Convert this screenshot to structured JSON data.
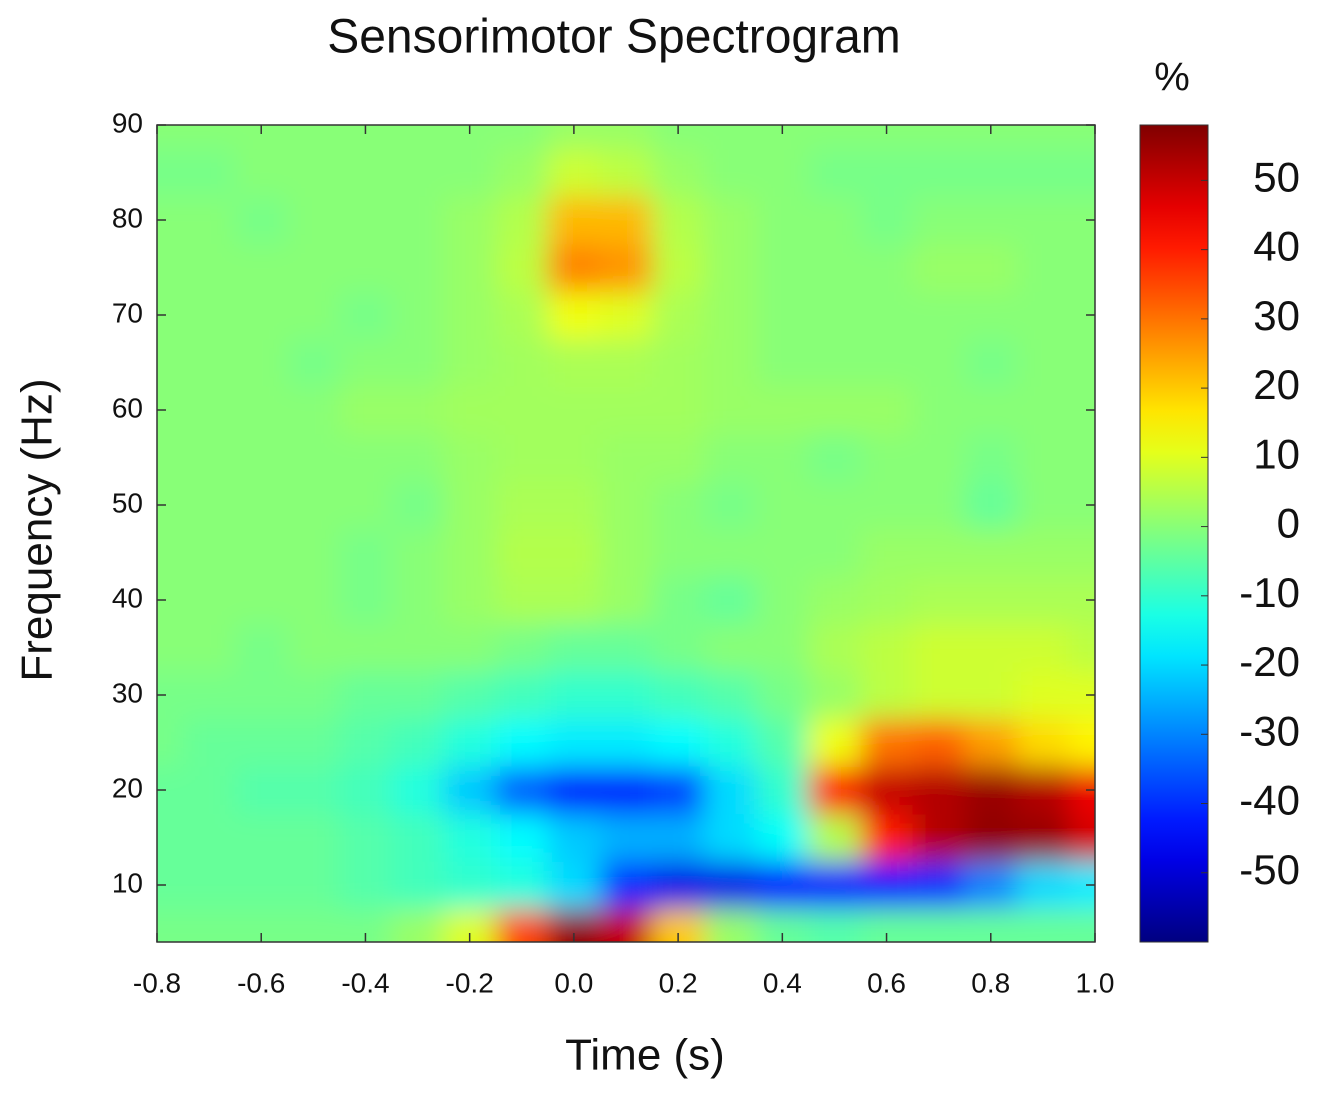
{
  "chart_data": {
    "type": "heatmap",
    "title": "Sensorimotor Spectrogram",
    "x_label": "Time (s)",
    "y_label": "Frequency (Hz)",
    "colorbar_label": "%",
    "colormap": "jet",
    "x": [
      -0.8,
      -0.7,
      -0.6,
      -0.5,
      -0.4,
      -0.3,
      -0.2,
      -0.1,
      0.0,
      0.1,
      0.2,
      0.3,
      0.4,
      0.5,
      0.6,
      0.7,
      0.8,
      0.9,
      1.0
    ],
    "y": [
      5,
      10,
      15,
      20,
      25,
      30,
      35,
      40,
      45,
      50,
      55,
      60,
      65,
      70,
      75,
      80,
      85,
      90
    ],
    "z": [
      [
        -2,
        -2,
        -2,
        -2,
        -2,
        2,
        10,
        35,
        56,
        50,
        20,
        2,
        -4,
        -6,
        -4,
        -4,
        -4,
        -4,
        -4
      ],
      [
        -4,
        -4,
        -4,
        -4,
        -6,
        -8,
        -10,
        -12,
        -20,
        -40,
        -48,
        -48,
        -45,
        -44,
        -42,
        -40,
        -30,
        -20,
        -18
      ],
      [
        -4,
        -4,
        -4,
        -4,
        -6,
        -8,
        -12,
        -16,
        -22,
        -25,
        -25,
        -20,
        -15,
        5,
        40,
        52,
        56,
        55,
        48
      ],
      [
        -4,
        -4,
        -6,
        -6,
        -8,
        -12,
        -22,
        -34,
        -42,
        -42,
        -38,
        -20,
        -10,
        40,
        50,
        52,
        55,
        52,
        45
      ],
      [
        -2,
        -4,
        -4,
        -4,
        -6,
        -8,
        -12,
        -16,
        -18,
        -18,
        -16,
        -12,
        -6,
        12,
        30,
        32,
        25,
        18,
        15
      ],
      [
        -2,
        -2,
        -2,
        -2,
        -4,
        -4,
        -6,
        -8,
        -10,
        -10,
        -8,
        -6,
        -2,
        2,
        6,
        8,
        8,
        10,
        10
      ],
      [
        0,
        0,
        -2,
        0,
        0,
        0,
        0,
        -2,
        -4,
        -4,
        -2,
        0,
        0,
        4,
        6,
        8,
        8,
        8,
        6
      ],
      [
        0,
        0,
        0,
        0,
        -2,
        0,
        2,
        4,
        4,
        2,
        -2,
        -4,
        0,
        2,
        3,
        4,
        4,
        4,
        4
      ],
      [
        0,
        0,
        0,
        0,
        -2,
        0,
        2,
        5,
        5,
        2,
        0,
        0,
        0,
        0,
        2,
        2,
        2,
        2,
        2
      ],
      [
        0,
        0,
        0,
        0,
        0,
        -2,
        2,
        4,
        4,
        2,
        0,
        -2,
        0,
        0,
        0,
        0,
        -4,
        0,
        0
      ],
      [
        0,
        0,
        0,
        0,
        0,
        0,
        2,
        3,
        3,
        2,
        2,
        0,
        0,
        -2,
        0,
        0,
        -2,
        0,
        0
      ],
      [
        0,
        0,
        0,
        0,
        2,
        2,
        3,
        3,
        3,
        3,
        3,
        2,
        2,
        2,
        2,
        0,
        0,
        0,
        0
      ],
      [
        0,
        0,
        0,
        -2,
        0,
        0,
        2,
        3,
        4,
        4,
        3,
        2,
        0,
        0,
        0,
        0,
        -2,
        0,
        0
      ],
      [
        0,
        0,
        0,
        0,
        -2,
        0,
        2,
        4,
        12,
        10,
        4,
        2,
        0,
        0,
        0,
        0,
        0,
        0,
        0
      ],
      [
        0,
        0,
        0,
        0,
        0,
        0,
        2,
        6,
        28,
        26,
        6,
        2,
        0,
        0,
        0,
        2,
        2,
        0,
        0
      ],
      [
        0,
        0,
        -2,
        0,
        0,
        0,
        2,
        5,
        22,
        22,
        5,
        2,
        0,
        0,
        -2,
        0,
        0,
        0,
        0
      ],
      [
        -2,
        -2,
        0,
        0,
        0,
        0,
        0,
        2,
        8,
        6,
        2,
        0,
        0,
        -2,
        -2,
        -2,
        -2,
        -2,
        -2
      ],
      [
        0,
        0,
        0,
        0,
        0,
        0,
        0,
        0,
        2,
        2,
        0,
        0,
        0,
        0,
        0,
        0,
        0,
        0,
        0
      ]
    ],
    "xlim": [
      -0.8,
      1.0
    ],
    "xticks": [
      -0.8,
      -0.6,
      -0.4,
      -0.2,
      {
        "value": 0,
        "label": "0.0"
      },
      0.2,
      0.4,
      0.6,
      0.8,
      {
        "value": 1,
        "label": "1.0"
      }
    ],
    "ylim": [
      4,
      90
    ],
    "yticks": [
      10,
      20,
      30,
      40,
      50,
      60,
      70,
      80,
      90
    ],
    "clim": [
      -60,
      58
    ],
    "cticks": [
      50,
      40,
      30,
      20,
      10,
      0,
      -10,
      -20,
      -30,
      -40,
      -50
    ]
  }
}
